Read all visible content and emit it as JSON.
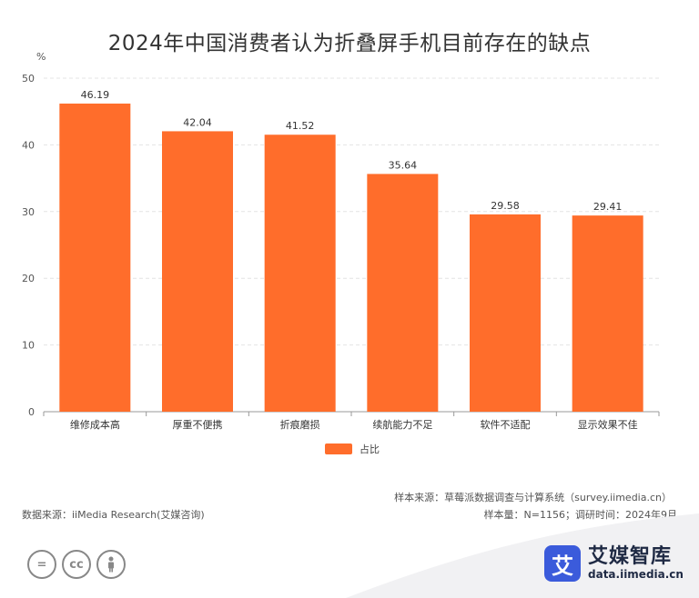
{
  "chart_data": {
    "type": "bar",
    "title": "2024年中国消费者认为折叠屏手机目前存在的缺点",
    "unit_label": "%",
    "categories": [
      "维修成本高",
      "厚重不便携",
      "折痕磨损",
      "续航能力不足",
      "软件不适配",
      "显示效果不佳"
    ],
    "series": [
      {
        "name": "占比",
        "values": [
          46.19,
          42.04,
          41.52,
          35.64,
          29.58,
          29.41
        ]
      }
    ],
    "y_ticks": [
      "0",
      "10",
      "20",
      "30",
      "40",
      "50"
    ],
    "ylim": [
      0,
      50
    ],
    "grid": true,
    "legend": "bottom-center",
    "bar_color": "#ff6d2b"
  },
  "footer": {
    "data_source": "数据来源：iiMedia Research(艾媒咨询)",
    "sample_source": "样本来源：草莓派数据调查与计算系统（survey.iimedia.cn）",
    "sample_size": "样本量：N=1156；调研时间：2024年9月"
  },
  "brand": {
    "logo_char": "艾",
    "name": "艾媒智库",
    "url": "data.iimedia.cn",
    "color": "#3b5bdb"
  },
  "license_icons": [
    "equal-icon",
    "cc-icon",
    "person-icon"
  ]
}
